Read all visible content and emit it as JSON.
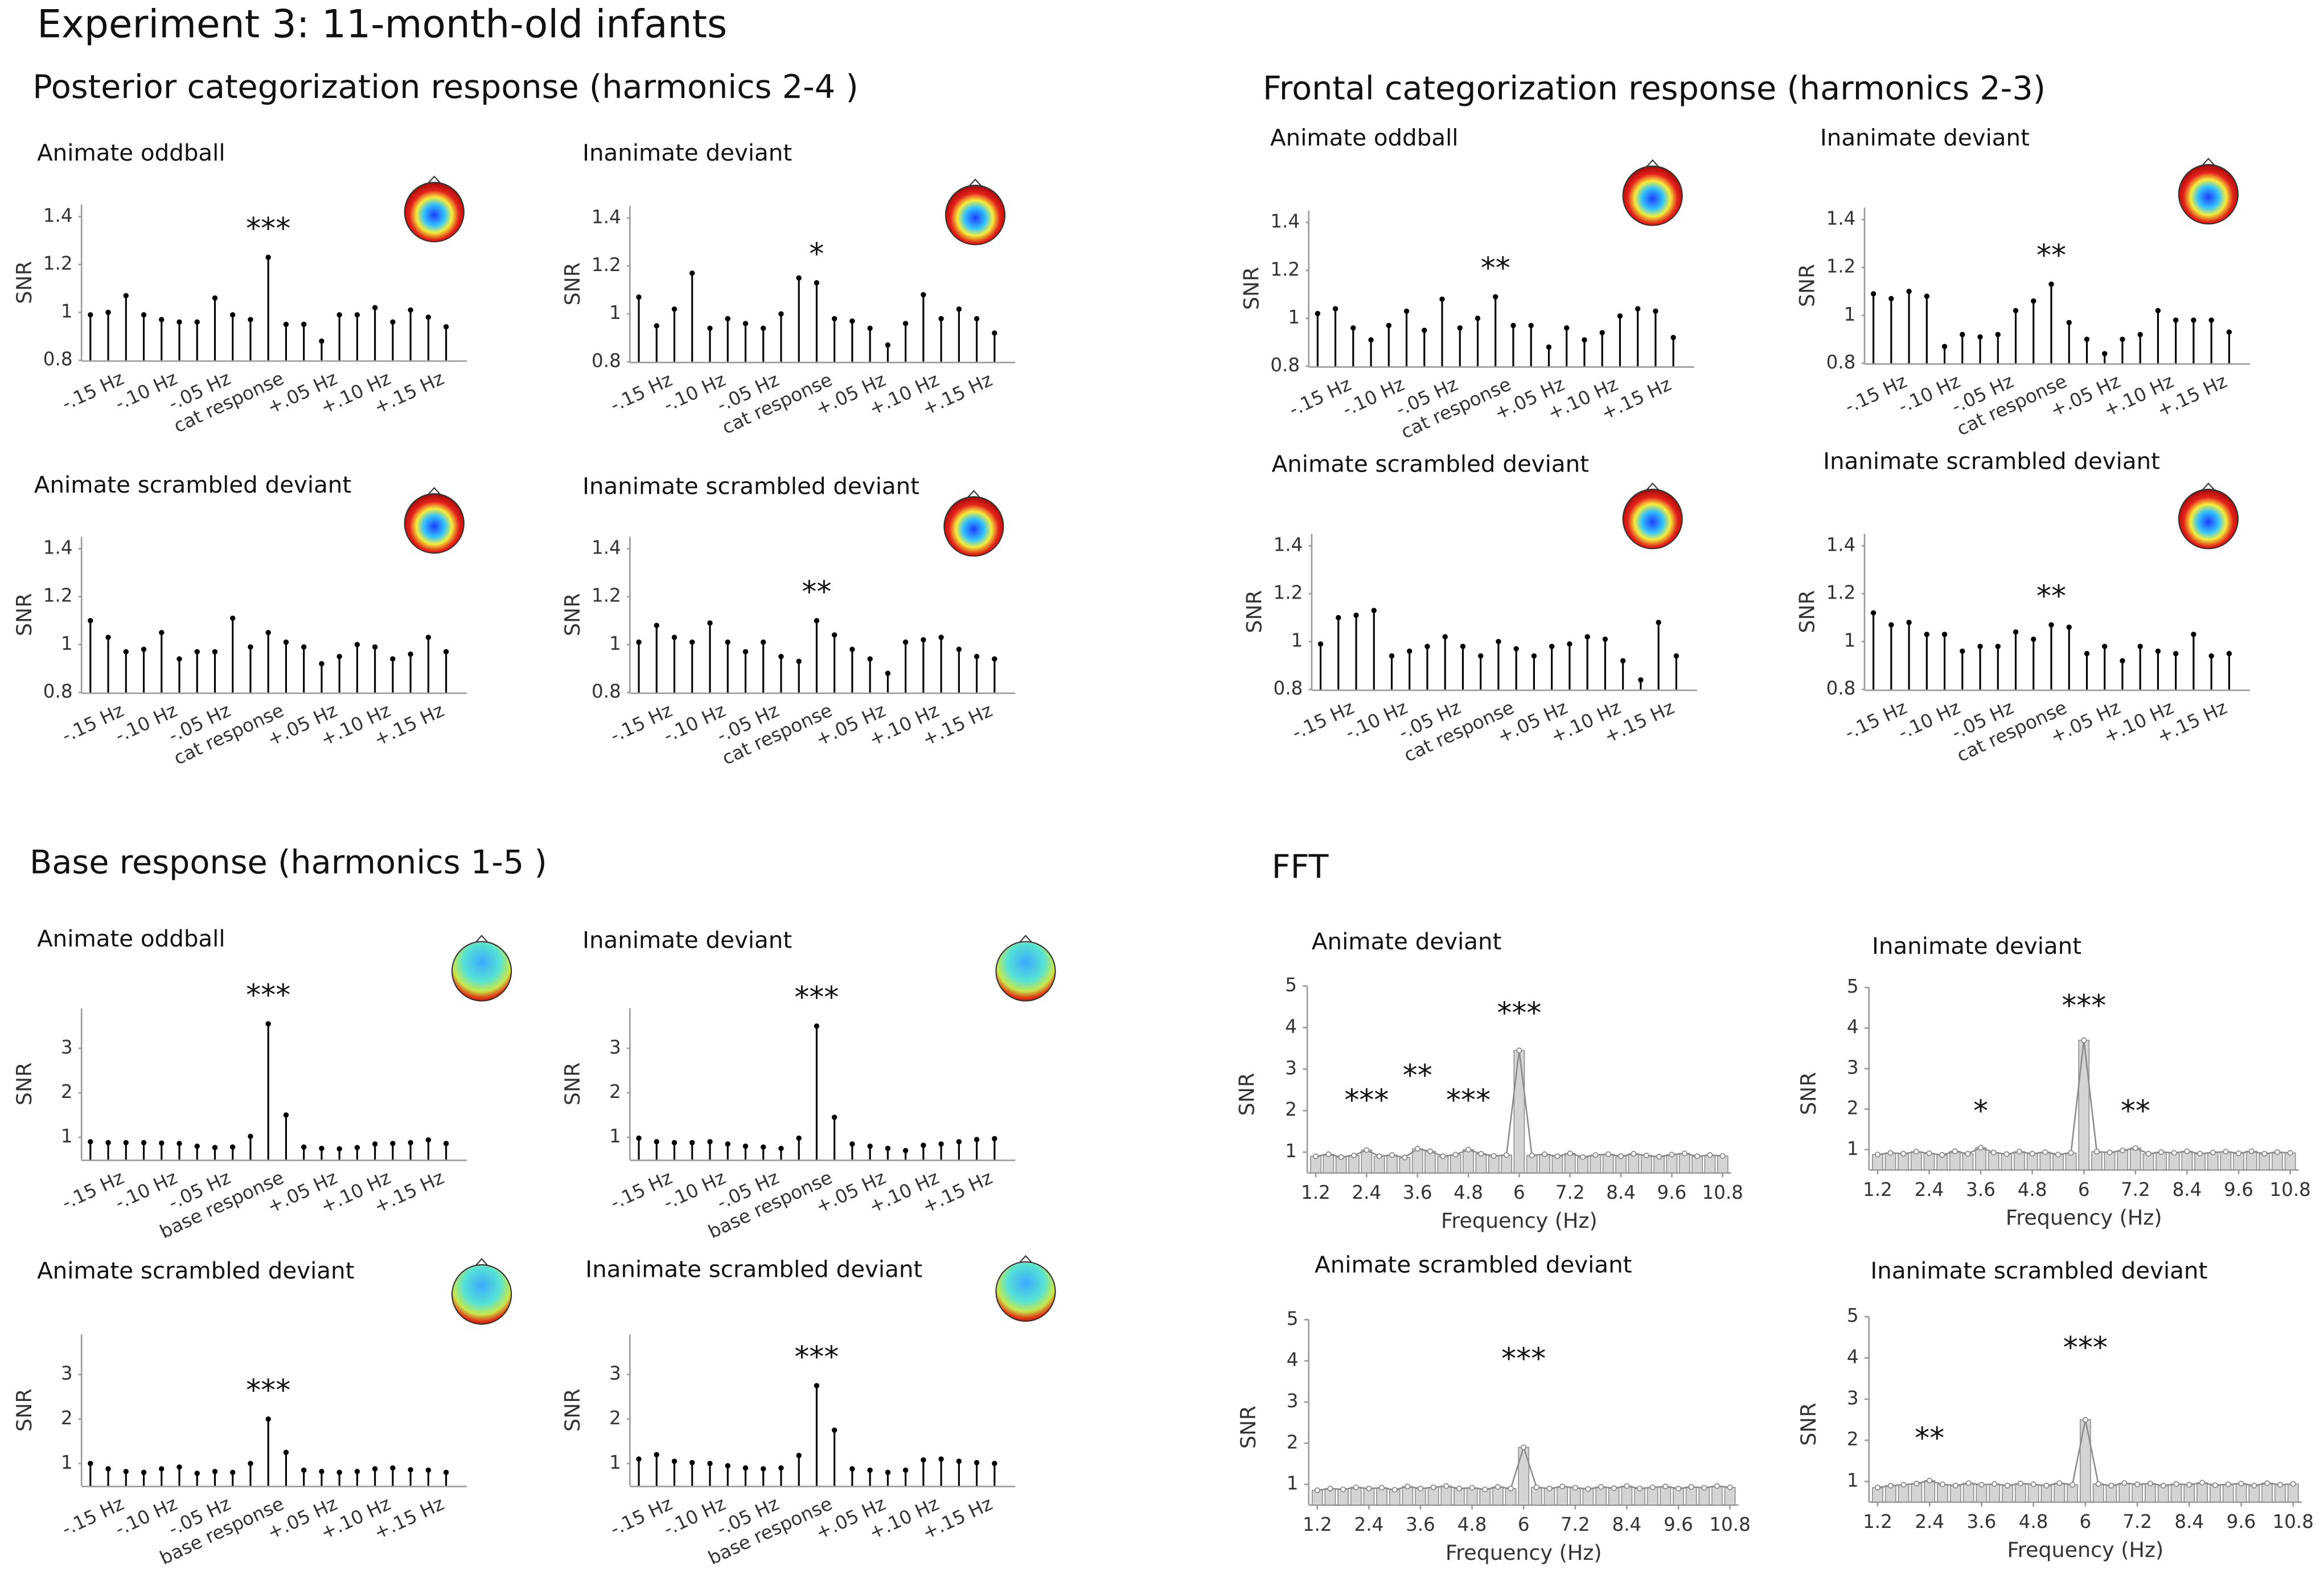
{
  "figure": {
    "title": "Experiment 3:  11-month-old infants",
    "sections": [
      "Posterior categorization response (harmonics  2-4  )",
      "Frontal categorization response (harmonics  2-3)",
      "Base response (harmonics  1-5 )",
      "FFT"
    ]
  },
  "chart_data": [
    {
      "type": "stem",
      "title": "Animate oddball",
      "y_label": "SNR",
      "color": "#000000",
      "annotation": "***",
      "categories": [
        null,
        "-.15 Hz",
        null,
        null,
        "-.10 Hz",
        null,
        null,
        "-.05 Hz",
        null,
        null,
        "cat response",
        null,
        null,
        "+.05 Hz",
        null,
        null,
        "+.10 Hz",
        null,
        null,
        "+.15 Hz",
        null
      ],
      "values": [
        0.99,
        1.0,
        1.07,
        0.99,
        0.97,
        0.96,
        0.96,
        1.06,
        0.99,
        0.97,
        1.23,
        0.95,
        0.95,
        0.88,
        0.99,
        0.99,
        1.02,
        0.96,
        1.01,
        0.98,
        0.94
      ],
      "ylim": [
        0.8,
        1.45
      ],
      "yticks": [
        0.8,
        1,
        1.2,
        1.4
      ]
    },
    {
      "type": "stem",
      "title": "Inanimate deviant",
      "y_label": "SNR",
      "color": "#000000",
      "annotation": "*",
      "categories": [
        null,
        "-.15 Hz",
        null,
        null,
        "-.10 Hz",
        null,
        null,
        "-.05 Hz",
        null,
        null,
        "cat response",
        null,
        null,
        "+.05 Hz",
        null,
        null,
        "+.10 Hz",
        null,
        null,
        "+.15 Hz",
        null
      ],
      "values": [
        1.07,
        0.95,
        1.02,
        1.17,
        0.94,
        0.98,
        0.96,
        0.94,
        1.0,
        1.15,
        1.13,
        0.98,
        0.97,
        0.94,
        0.87,
        0.96,
        1.08,
        0.98,
        1.02,
        0.98,
        0.92
      ],
      "ylim": [
        0.8,
        1.45
      ],
      "yticks": [
        0.8,
        1,
        1.2,
        1.4
      ]
    },
    {
      "type": "stem",
      "title": "Animate scrambled deviant",
      "y_label": "SNR",
      "color": "#000000",
      "categories": [
        null,
        "-.15 Hz",
        null,
        null,
        "-.10 Hz",
        null,
        null,
        "-.05 Hz",
        null,
        null,
        "cat response",
        null,
        null,
        "+.05 Hz",
        null,
        null,
        "+.10 Hz",
        null,
        null,
        "+.15 Hz",
        null
      ],
      "values": [
        1.1,
        1.03,
        0.97,
        0.98,
        1.05,
        0.94,
        0.97,
        0.97,
        1.11,
        0.99,
        1.05,
        1.01,
        0.99,
        0.92,
        0.95,
        1.0,
        0.99,
        0.94,
        0.96,
        1.03,
        0.97
      ],
      "ylim": [
        0.8,
        1.45
      ],
      "yticks": [
        0.8,
        1,
        1.2,
        1.4
      ]
    },
    {
      "type": "stem",
      "title": "Inanimate scrambled deviant",
      "y_label": "SNR",
      "color": "#000000",
      "annotation": "**",
      "categories": [
        null,
        "-.15 Hz",
        null,
        null,
        "-.10 Hz",
        null,
        null,
        "-.05 Hz",
        null,
        null,
        "cat response",
        null,
        null,
        "+.05 Hz",
        null,
        null,
        "+.10 Hz",
        null,
        null,
        "+.15 Hz",
        null
      ],
      "values": [
        1.01,
        1.08,
        1.03,
        1.01,
        1.09,
        1.01,
        0.97,
        1.01,
        0.95,
        0.93,
        1.1,
        1.04,
        0.98,
        0.94,
        0.88,
        1.01,
        1.02,
        1.03,
        0.98,
        0.95,
        0.94
      ],
      "ylim": [
        0.8,
        1.45
      ],
      "yticks": [
        0.8,
        1,
        1.2,
        1.4
      ]
    },
    {
      "type": "stem",
      "title": "Animate oddball",
      "y_label": "SNR",
      "color": "#000000",
      "annotation": "**",
      "categories": [
        null,
        "-.15 Hz",
        null,
        null,
        "-.10 Hz",
        null,
        null,
        "-.05 Hz",
        null,
        null,
        "cat response",
        null,
        null,
        "+.05 Hz",
        null,
        null,
        "+.10 Hz",
        null,
        null,
        "+.15 Hz",
        null
      ],
      "values": [
        1.02,
        1.04,
        0.96,
        0.91,
        0.97,
        1.03,
        0.95,
        1.08,
        0.96,
        1.0,
        1.09,
        0.97,
        0.97,
        0.88,
        0.96,
        0.91,
        0.94,
        1.01,
        1.04,
        1.03,
        0.92
      ],
      "ylim": [
        0.8,
        1.45
      ],
      "yticks": [
        0.8,
        1,
        1.2,
        1.4
      ]
    },
    {
      "type": "stem",
      "title": "Inanimate deviant",
      "y_label": "SNR",
      "color": "#000000",
      "annotation": "**",
      "categories": [
        null,
        "-.15 Hz",
        null,
        null,
        "-.10 Hz",
        null,
        null,
        "-.05 Hz",
        null,
        null,
        "cat response",
        null,
        null,
        "+.05 Hz",
        null,
        null,
        "+.10 Hz",
        null,
        null,
        "+.15 Hz",
        null
      ],
      "values": [
        1.09,
        1.07,
        1.1,
        1.08,
        0.87,
        0.92,
        0.91,
        0.92,
        1.02,
        1.06,
        1.13,
        0.97,
        0.9,
        0.84,
        0.9,
        0.92,
        1.02,
        0.98,
        0.98,
        0.98,
        0.93
      ],
      "ylim": [
        0.8,
        1.45
      ],
      "yticks": [
        0.8,
        1,
        1.2,
        1.4
      ]
    },
    {
      "type": "stem",
      "title": "Animate scrambled deviant",
      "y_label": "SNR",
      "color": "#000000",
      "categories": [
        null,
        "-.15 Hz",
        null,
        null,
        "-.10 Hz",
        null,
        null,
        "-.05 Hz",
        null,
        null,
        "cat response",
        null,
        null,
        "+.05 Hz",
        null,
        null,
        "+.10 Hz",
        null,
        null,
        "+.15 Hz",
        null
      ],
      "values": [
        0.99,
        1.1,
        1.11,
        1.13,
        0.94,
        0.96,
        0.98,
        1.02,
        0.98,
        0.94,
        1.0,
        0.97,
        0.94,
        0.98,
        0.99,
        1.02,
        1.01,
        0.92,
        0.84,
        1.08,
        0.94
      ],
      "ylim": [
        0.8,
        1.45
      ],
      "yticks": [
        0.8,
        1,
        1.2,
        1.4
      ]
    },
    {
      "type": "stem",
      "title": "Inanimate scrambled deviant",
      "y_label": "SNR",
      "color": "#000000",
      "annotation": "**",
      "categories": [
        null,
        "-.15 Hz",
        null,
        null,
        "-.10 Hz",
        null,
        null,
        "-.05 Hz",
        null,
        null,
        "cat response",
        null,
        null,
        "+.05 Hz",
        null,
        null,
        "+.10 Hz",
        null,
        null,
        "+.15 Hz",
        null
      ],
      "values": [
        1.12,
        1.07,
        1.08,
        1.03,
        1.03,
        0.96,
        0.98,
        0.98,
        1.04,
        1.01,
        1.07,
        1.06,
        0.95,
        0.98,
        0.92,
        0.98,
        0.96,
        0.95,
        1.03,
        0.94,
        0.95
      ],
      "ylim": [
        0.8,
        1.45
      ],
      "yticks": [
        0.8,
        1,
        1.2,
        1.4
      ]
    },
    {
      "type": "stem",
      "title": "Animate oddball",
      "y_label": "SNR",
      "color": "#000000",
      "annotation": "***",
      "categories": [
        null,
        "-.15 Hz",
        null,
        null,
        "-.10 Hz",
        null,
        null,
        "-.05 Hz",
        null,
        null,
        "base response",
        null,
        null,
        "+.05 Hz",
        null,
        null,
        "+.10 Hz",
        null,
        null,
        "+.15 Hz",
        null
      ],
      "values": [
        0.9,
        0.88,
        0.88,
        0.88,
        0.87,
        0.86,
        0.8,
        0.77,
        0.78,
        1.02,
        3.55,
        1.5,
        0.78,
        0.75,
        0.74,
        0.77,
        0.85,
        0.86,
        0.88,
        0.94,
        0.86
      ],
      "ylim": [
        0.5,
        3.9
      ],
      "yticks": [
        1,
        2,
        3
      ]
    },
    {
      "type": "stem",
      "title": "Inanimate deviant",
      "y_label": "SNR",
      "color": "#000000",
      "annotation": "***",
      "categories": [
        null,
        "-.15 Hz",
        null,
        null,
        "-.10 Hz",
        null,
        null,
        "-.05 Hz",
        null,
        null,
        "base response",
        null,
        null,
        "+.05 Hz",
        null,
        null,
        "+.10 Hz",
        null,
        null,
        "+.15 Hz",
        null
      ],
      "values": [
        0.98,
        0.9,
        0.88,
        0.88,
        0.9,
        0.85,
        0.8,
        0.78,
        0.75,
        0.98,
        3.5,
        1.45,
        0.85,
        0.8,
        0.75,
        0.7,
        0.82,
        0.85,
        0.9,
        0.95,
        0.97
      ],
      "ylim": [
        0.5,
        3.9
      ],
      "yticks": [
        1,
        2,
        3
      ]
    },
    {
      "type": "stem",
      "title": "Animate scrambled deviant",
      "y_label": "SNR",
      "color": "#000000",
      "annotation": "***",
      "categories": [
        null,
        "-.15 Hz",
        null,
        null,
        "-.10 Hz",
        null,
        null,
        "-.05 Hz",
        null,
        null,
        "base response",
        null,
        null,
        "+.05 Hz",
        null,
        null,
        "+.10 Hz",
        null,
        null,
        "+.15 Hz",
        null
      ],
      "values": [
        1.0,
        0.88,
        0.82,
        0.8,
        0.88,
        0.92,
        0.78,
        0.82,
        0.8,
        1.0,
        2.0,
        1.25,
        0.85,
        0.82,
        0.8,
        0.82,
        0.88,
        0.9,
        0.86,
        0.85,
        0.8
      ],
      "ylim": [
        0.5,
        3.9
      ],
      "yticks": [
        1,
        2,
        3
      ]
    },
    {
      "type": "stem",
      "title": "Inanimate scrambled deviant",
      "y_label": "SNR",
      "color": "#000000",
      "annotation": "***",
      "categories": [
        null,
        "-.15 Hz",
        null,
        null,
        "-.10 Hz",
        null,
        null,
        "-.05 Hz",
        null,
        null,
        "base response",
        null,
        null,
        "+.05 Hz",
        null,
        null,
        "+.10 Hz",
        null,
        null,
        "+.15 Hz",
        null
      ],
      "values": [
        1.1,
        1.2,
        1.05,
        1.02,
        1.0,
        0.95,
        0.9,
        0.88,
        0.9,
        1.18,
        2.75,
        1.75,
        0.88,
        0.85,
        0.8,
        0.85,
        1.08,
        1.1,
        1.05,
        1.02,
        1.0
      ],
      "ylim": [
        0.5,
        3.9
      ],
      "yticks": [
        1,
        2,
        3
      ]
    },
    {
      "type": "fft",
      "title": "Animate deviant",
      "y_label": "SNR",
      "x_label": "Frequency (Hz)",
      "color": "#8c8c8c",
      "x": [
        1.2,
        1.5,
        1.8,
        2.1,
        2.4,
        2.7,
        3.0,
        3.3,
        3.6,
        3.9,
        4.2,
        4.5,
        4.8,
        5.1,
        5.4,
        5.7,
        6.0,
        6.3,
        6.6,
        6.9,
        7.2,
        7.5,
        7.8,
        8.1,
        8.4,
        8.7,
        9.0,
        9.3,
        9.6,
        9.9,
        10.2,
        10.5,
        10.8
      ],
      "values": [
        0.9,
        0.95,
        0.88,
        0.92,
        1.05,
        0.9,
        0.93,
        0.87,
        1.08,
        1.02,
        0.9,
        0.94,
        1.06,
        0.96,
        0.91,
        0.93,
        3.45,
        0.92,
        0.95,
        0.9,
        0.97,
        0.88,
        0.93,
        0.95,
        0.9,
        0.96,
        0.92,
        0.89,
        0.94,
        0.97,
        0.9,
        0.93,
        0.91
      ],
      "xlim": [
        1.0,
        11.0
      ],
      "ylim": [
        0.5,
        5
      ],
      "xticks": [
        1.2,
        2.4,
        3.6,
        4.8,
        6,
        7.2,
        8.4,
        9.6,
        10.8
      ],
      "yticks": [
        1,
        2,
        3,
        4,
        5
      ],
      "annotations": [
        {
          "text": "***",
          "x": 2.4,
          "y": 2.2
        },
        {
          "text": "**",
          "x": 3.6,
          "y": 2.8
        },
        {
          "text": "***",
          "x": 4.8,
          "y": 2.2
        },
        {
          "text": "***",
          "x": 6,
          "y": 4.3
        }
      ]
    },
    {
      "type": "fft",
      "title": "Inanimate deviant",
      "y_label": "SNR",
      "x_label": "Frequency (Hz)",
      "color": "#8c8c8c",
      "x": [
        1.2,
        1.5,
        1.8,
        2.1,
        2.4,
        2.7,
        3.0,
        3.3,
        3.6,
        3.9,
        4.2,
        4.5,
        4.8,
        5.1,
        5.4,
        5.7,
        6.0,
        6.3,
        6.6,
        6.9,
        7.2,
        7.5,
        7.8,
        8.1,
        8.4,
        8.7,
        9.0,
        9.3,
        9.6,
        9.9,
        10.2,
        10.5,
        10.8
      ],
      "values": [
        0.88,
        0.92,
        0.9,
        0.95,
        0.91,
        0.87,
        0.96,
        0.9,
        1.05,
        0.93,
        0.89,
        0.95,
        0.9,
        0.94,
        0.88,
        0.92,
        3.7,
        0.95,
        0.93,
        0.98,
        1.04,
        0.9,
        0.94,
        0.92,
        0.96,
        0.9,
        0.93,
        0.95,
        0.91,
        0.96,
        0.9,
        0.94,
        0.92
      ],
      "xlim": [
        1.0,
        11.0
      ],
      "ylim": [
        0.5,
        5
      ],
      "xticks": [
        1.2,
        2.4,
        3.6,
        4.8,
        6,
        7.2,
        8.4,
        9.6,
        10.8
      ],
      "yticks": [
        1,
        2,
        3,
        4,
        5
      ],
      "annotations": [
        {
          "text": "*",
          "x": 3.6,
          "y": 1.9
        },
        {
          "text": "***",
          "x": 6,
          "y": 4.5
        },
        {
          "text": "**",
          "x": 7.2,
          "y": 1.9
        }
      ]
    },
    {
      "type": "fft",
      "title": "Animate scrambled deviant",
      "y_label": "SNR",
      "x_label": "Frequency (Hz)",
      "color": "#8c8c8c",
      "x": [
        1.2,
        1.5,
        1.8,
        2.1,
        2.4,
        2.7,
        3.0,
        3.3,
        3.6,
        3.9,
        4.2,
        4.5,
        4.8,
        5.1,
        5.4,
        5.7,
        6.0,
        6.3,
        6.6,
        6.9,
        7.2,
        7.5,
        7.8,
        8.1,
        8.4,
        8.7,
        9.0,
        9.3,
        9.6,
        9.9,
        10.2,
        10.5,
        10.8
      ],
      "values": [
        0.86,
        0.9,
        0.88,
        0.93,
        0.9,
        0.92,
        0.87,
        0.95,
        0.9,
        0.93,
        0.96,
        0.9,
        0.92,
        0.88,
        0.94,
        0.9,
        1.9,
        0.93,
        0.9,
        0.95,
        0.92,
        0.89,
        0.94,
        0.91,
        0.96,
        0.9,
        0.93,
        0.95,
        0.9,
        0.94,
        0.92,
        0.96,
        0.93
      ],
      "xlim": [
        1.0,
        11.0
      ],
      "ylim": [
        0.5,
        5
      ],
      "xticks": [
        1.2,
        2.4,
        3.6,
        4.8,
        6,
        7.2,
        8.4,
        9.6,
        10.8
      ],
      "yticks": [
        1,
        2,
        3,
        4,
        5
      ],
      "annotations": [
        {
          "text": "***",
          "x": 6,
          "y": 4.0
        }
      ]
    },
    {
      "type": "fft",
      "title": "Inanimate scrambled  deviant",
      "y_label": "SNR",
      "x_label": "Frequency (Hz)",
      "color": "#8c8c8c",
      "x": [
        1.2,
        1.5,
        1.8,
        2.1,
        2.4,
        2.7,
        3.0,
        3.3,
        3.6,
        3.9,
        4.2,
        4.5,
        4.8,
        5.1,
        5.4,
        5.7,
        6.0,
        6.3,
        6.6,
        6.9,
        7.2,
        7.5,
        7.8,
        8.1,
        8.4,
        8.7,
        9.0,
        9.3,
        9.6,
        9.9,
        10.2,
        10.5,
        10.8
      ],
      "values": [
        0.85,
        0.9,
        0.92,
        0.95,
        1.02,
        0.93,
        0.9,
        0.96,
        0.92,
        0.94,
        0.9,
        0.95,
        0.93,
        0.9,
        0.96,
        0.92,
        2.5,
        0.94,
        0.9,
        0.96,
        0.93,
        0.95,
        0.9,
        0.94,
        0.92,
        0.97,
        0.91,
        0.93,
        0.95,
        0.9,
        0.96,
        0.92,
        0.94
      ],
      "xlim": [
        1.0,
        11.0
      ],
      "ylim": [
        0.5,
        5
      ],
      "xticks": [
        1.2,
        2.4,
        3.6,
        4.8,
        6,
        7.2,
        8.4,
        9.6,
        10.8
      ],
      "yticks": [
        1,
        2,
        3,
        4,
        5
      ],
      "annotations": [
        {
          "text": "**",
          "x": 2.4,
          "y": 2.0
        },
        {
          "text": "***",
          "x": 6,
          "y": 4.2
        }
      ]
    }
  ]
}
